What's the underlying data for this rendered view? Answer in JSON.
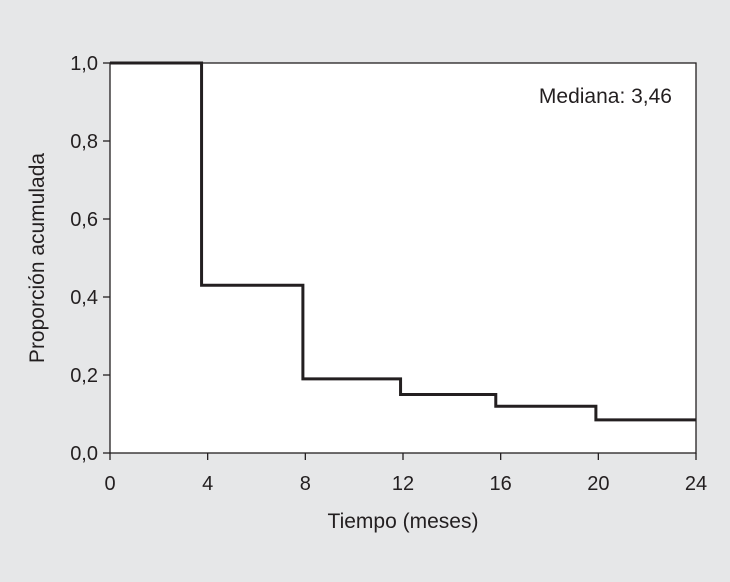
{
  "chart_data": {
    "type": "line",
    "step": "post",
    "title": "",
    "xlabel": "Tiempo (meses)",
    "ylabel": "Proporción acumulada",
    "annotation": "Mediana: 3,46",
    "xlim": [
      0,
      24
    ],
    "ylim": [
      0,
      1
    ],
    "xticks": [
      0,
      4,
      8,
      12,
      16,
      20,
      24
    ],
    "xtick_labels": [
      "0",
      "4",
      "8",
      "12",
      "16",
      "20",
      "24"
    ],
    "yticks": [
      0,
      0.2,
      0.4,
      0.6,
      0.8,
      1.0
    ],
    "ytick_labels": [
      "0,0",
      "0,2",
      "0,4",
      "0,6",
      "0,8",
      "1,0"
    ],
    "grid": false,
    "series": [
      {
        "x": [
          0,
          3.75,
          7.9,
          11.9,
          15.8,
          19.9,
          24
        ],
        "y": [
          1.0,
          0.43,
          0.19,
          0.15,
          0.12,
          0.085,
          0.085
        ]
      }
    ],
    "colors": {
      "background": "#e6e7e8",
      "plot_background": "#ffffff",
      "line": "#231f20"
    }
  }
}
